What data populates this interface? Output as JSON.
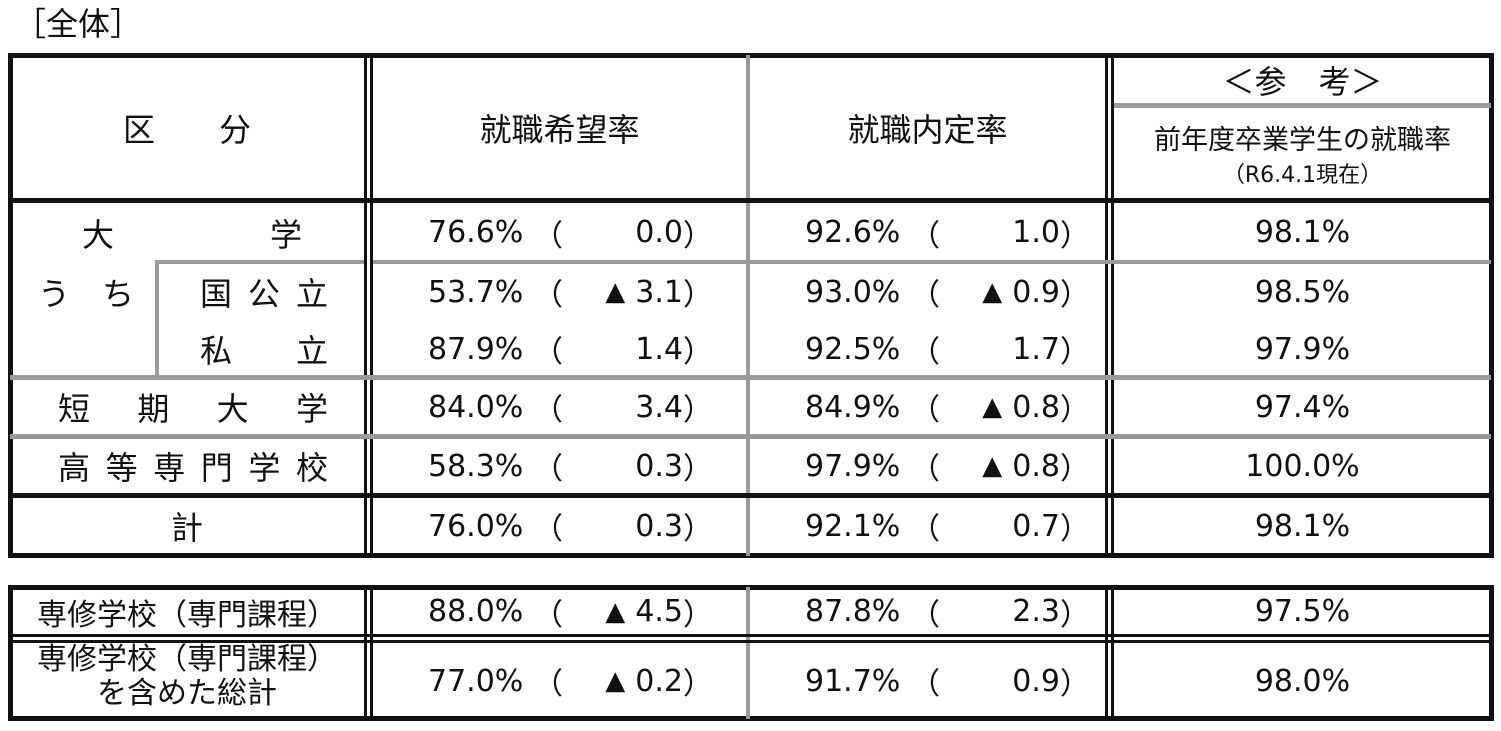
{
  "heading": "［全体］",
  "header": {
    "category": "区　　分",
    "col1": "就職希望率",
    "col2": "就職内定率",
    "ref_title": "＜参　考＞",
    "ref_sub": "前年度卒業学生の就職率",
    "ref_date": "（R6.4.1現在）"
  },
  "rows": [
    {
      "label": "大学",
      "label_chars": [
        "大",
        "学"
      ],
      "wish": "76.6%",
      "wish_diff": "0.0",
      "wish_neg": false,
      "offer": "92.6%",
      "offer_diff": "1.0",
      "offer_neg": false,
      "ref": "98.1%"
    },
    {
      "label": "国公立",
      "label_chars": [
        "国",
        "公",
        "立"
      ],
      "wish": "53.7%",
      "wish_diff": "3.1",
      "wish_neg": true,
      "offer": "93.0%",
      "offer_diff": "0.9",
      "offer_neg": true,
      "ref": "98.5%"
    },
    {
      "label": "私立",
      "label_chars": [
        "私",
        "立"
      ],
      "wish": "87.9%",
      "wish_diff": "1.4",
      "wish_neg": false,
      "offer": "92.5%",
      "offer_diff": "1.7",
      "offer_neg": false,
      "ref": "97.9%"
    },
    {
      "label": "短期大学",
      "label_chars": [
        "短",
        "期",
        "大",
        "学"
      ],
      "wish": "84.0%",
      "wish_diff": "3.4",
      "wish_neg": false,
      "offer": "84.9%",
      "offer_diff": "0.8",
      "offer_neg": true,
      "ref": "97.4%"
    },
    {
      "label": "高等専門学校",
      "label_chars": [
        "高",
        "等",
        "専",
        "門",
        "学",
        "校"
      ],
      "wish": "58.3%",
      "wish_diff": "0.3",
      "wish_neg": false,
      "offer": "97.9%",
      "offer_diff": "0.8",
      "offer_neg": true,
      "ref": "100.0%"
    },
    {
      "label": "計",
      "label_chars": [
        "計"
      ],
      "wish": "76.0%",
      "wish_diff": "0.3",
      "wish_neg": false,
      "offer": "92.1%",
      "offer_diff": "0.7",
      "offer_neg": false,
      "ref": "98.1%"
    }
  ],
  "uchi_chars": [
    "う",
    "ち"
  ],
  "bottom": [
    {
      "label": "専修学校（専門課程）",
      "wish": "88.0%",
      "wish_diff": "4.5",
      "wish_neg": true,
      "offer": "87.8%",
      "offer_diff": "2.3",
      "offer_neg": false,
      "ref": "97.5%"
    },
    {
      "label_line1": "専修学校（専門課程）",
      "label_line2": "を含めた総計",
      "wish": "77.0%",
      "wish_diff": "0.2",
      "wish_neg": true,
      "offer": "91.7%",
      "offer_diff": "0.9",
      "offer_neg": false,
      "ref": "98.0%"
    }
  ],
  "symbols": {
    "open_paren": "（",
    "close_paren": "）",
    "triangle": "▲"
  }
}
